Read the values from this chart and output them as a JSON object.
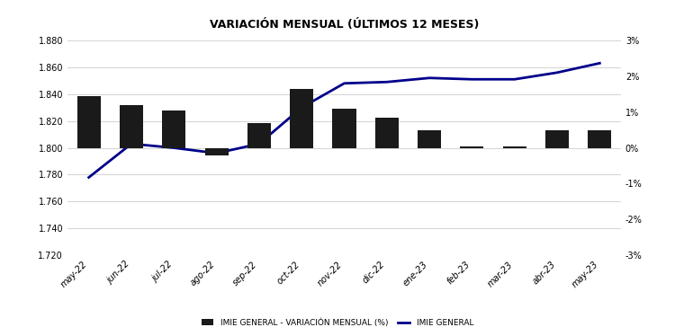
{
  "title": "VARIACIÓN MENSUAL (ÚLTIMOS 12 MESES)",
  "categories": [
    "may-22",
    "jun-22",
    "jul-22",
    "ago-22",
    "sep-22",
    "oct-22",
    "nov-22",
    "dic-22",
    "ene-23",
    "feb-23",
    "mar-23",
    "abr-23",
    "may-23"
  ],
  "imie_general": [
    1778,
    1803,
    1800,
    1796,
    1803,
    1830,
    1848,
    1849,
    1852,
    1851,
    1851,
    1856,
    1863
  ],
  "variacion_mensual": [
    1.45,
    1.2,
    1.05,
    -0.22,
    0.7,
    1.65,
    1.1,
    0.85,
    0.5,
    0.05,
    0.03,
    0.48,
    0.48
  ],
  "bar_color": "#1a1a1a",
  "line_color": "#00008B",
  "left_ylim": [
    1720,
    1880
  ],
  "right_ylim": [
    -3,
    3
  ],
  "left_yticks": [
    1720,
    1740,
    1760,
    1780,
    1800,
    1820,
    1840,
    1860,
    1880
  ],
  "right_yticks": [
    -3,
    -2,
    -1,
    0,
    1,
    2,
    3
  ],
  "right_yticklabels": [
    "-3%",
    "-2%",
    "-1%",
    "0%",
    "1%",
    "2%",
    "3%"
  ],
  "legend_bar_label": "IMIE GENERAL - VARIACIÓN MENSUAL (%)",
  "legend_line_label": "IMIE GENERAL",
  "background_color": "#ffffff",
  "grid_color": "#cccccc",
  "title_fontsize": 9,
  "tick_fontsize": 7,
  "legend_fontsize": 6.5
}
